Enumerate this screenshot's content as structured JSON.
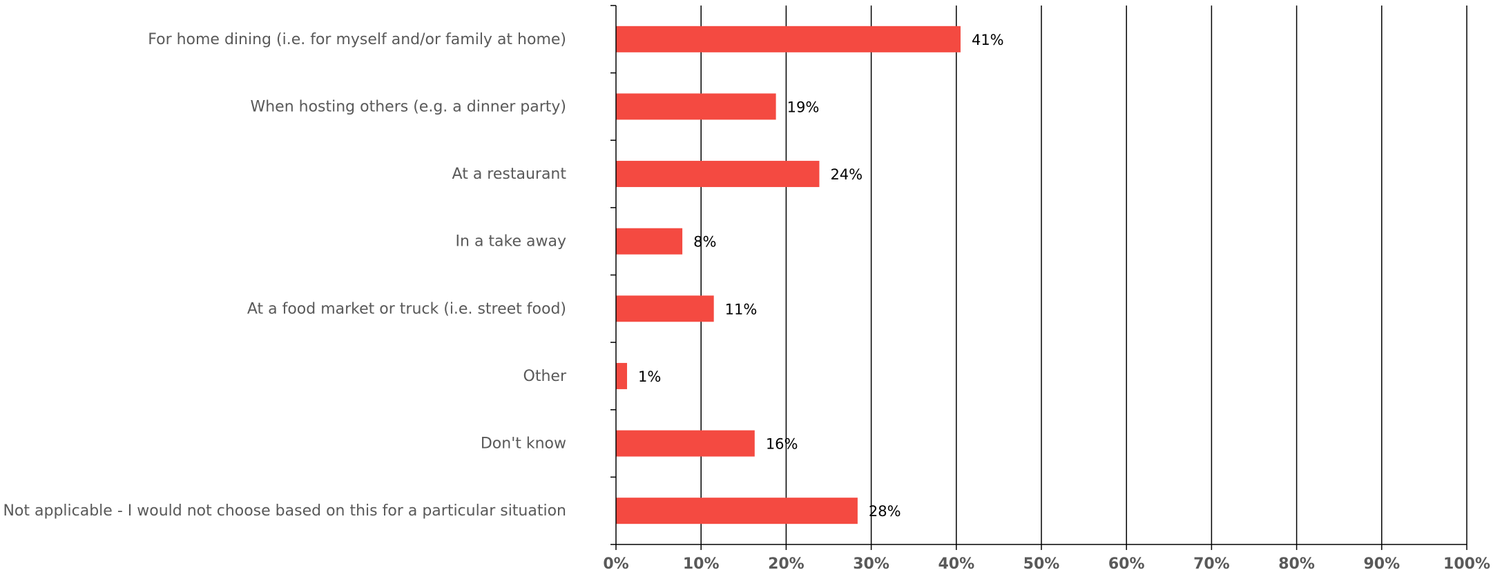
{
  "chart_data": {
    "type": "bar",
    "orientation": "horizontal",
    "categories": [
      "For home dining (i.e. for myself and/or family at home)",
      "When hosting others (e.g. a dinner party)",
      "At a restaurant",
      "In a take away",
      "At a food market or truck (i.e. street food)",
      "Other",
      "Don't know",
      "Not applicable - I would not choose based on this for a particular situation"
    ],
    "values": [
      40.5,
      18.8,
      23.9,
      7.8,
      11.5,
      1.3,
      16.3,
      28.4
    ],
    "data_labels": [
      "41%",
      "19%",
      "24%",
      "8%",
      "11%",
      "1%",
      "16%",
      "28%"
    ],
    "xlim": [
      0,
      100
    ],
    "x_ticks": [
      0,
      10,
      20,
      30,
      40,
      50,
      60,
      70,
      80,
      90,
      100
    ],
    "x_tick_labels": [
      "0%",
      "10%",
      "20%",
      "30%",
      "40%",
      "50%",
      "60%",
      "70%",
      "80%",
      "90%",
      "100%"
    ],
    "grid": true,
    "bar_color": "#f44a41",
    "grid_color": "#000000"
  }
}
